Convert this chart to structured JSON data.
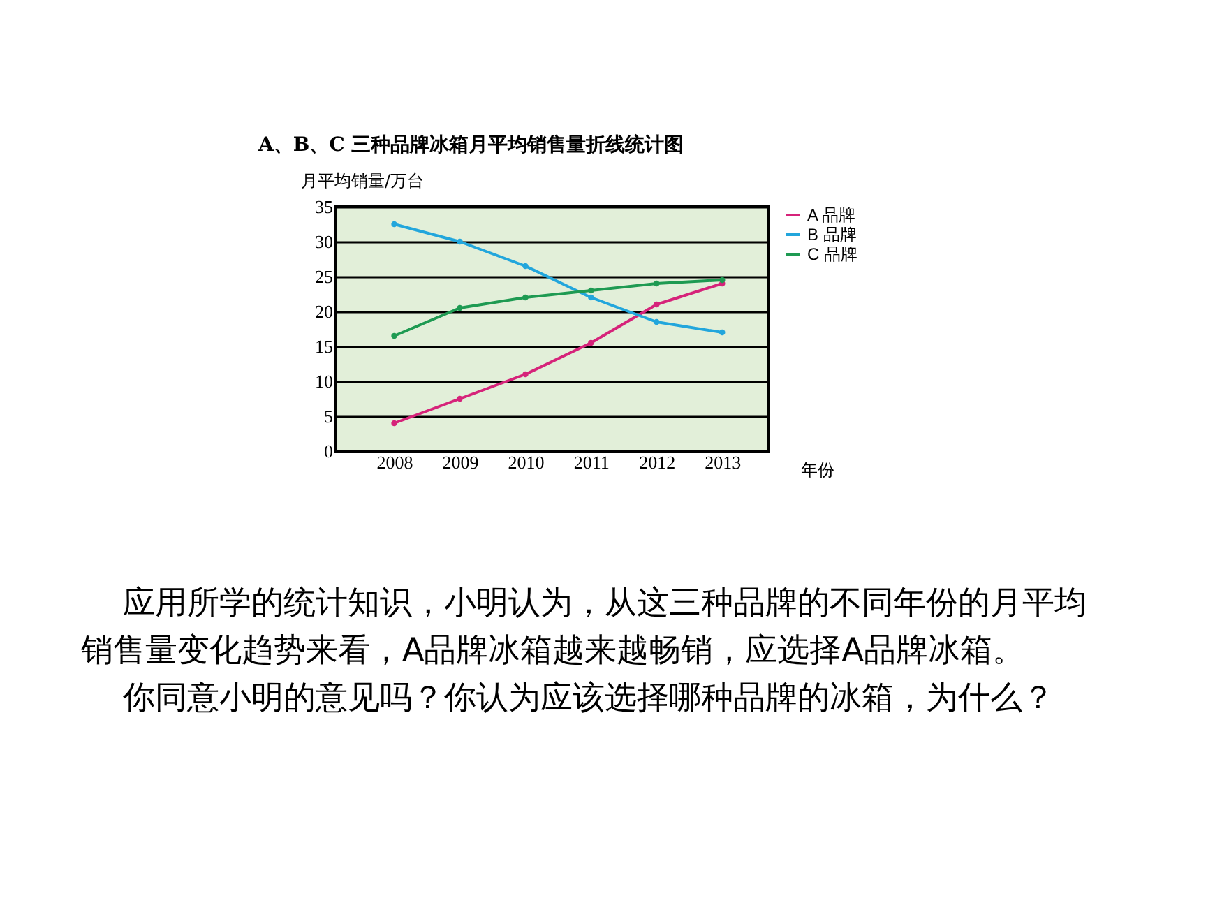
{
  "chart_data": {
    "type": "line",
    "title": "A、B、C 三种品牌冰箱月平均销售量折线统计图",
    "xlabel": "年份",
    "ylabel": "月平均销量/万台",
    "categories": [
      "2008",
      "2009",
      "2010",
      "2011",
      "2012",
      "2013"
    ],
    "series": [
      {
        "name": "A 品牌",
        "color": "#d6237a",
        "values": [
          4,
          7.5,
          11,
          15.5,
          21,
          24
        ]
      },
      {
        "name": "B 品牌",
        "color": "#22a6dc",
        "values": [
          32.5,
          30,
          26.5,
          22,
          18.5,
          17
        ]
      },
      {
        "name": "C 品牌",
        "color": "#1e9a52",
        "values": [
          16.5,
          20.5,
          22,
          23,
          24,
          24.5
        ]
      }
    ],
    "ylim": [
      0,
      35
    ],
    "yticks": [
      0,
      5,
      10,
      15,
      20,
      25,
      30,
      35
    ],
    "grid": "y",
    "legend": "right",
    "marker": "circle",
    "line_style": "solid",
    "annotations": [
      "应用所学的统计知识，小明认为，从这三种品牌的不同年份的月平均销售量变化趋势来看，A品牌冰箱越来越畅销，应选择A品牌冰箱。",
      "你同意小明的意见吗？你认为应该选择哪种品牌的冰箱，为什么？"
    ]
  }
}
